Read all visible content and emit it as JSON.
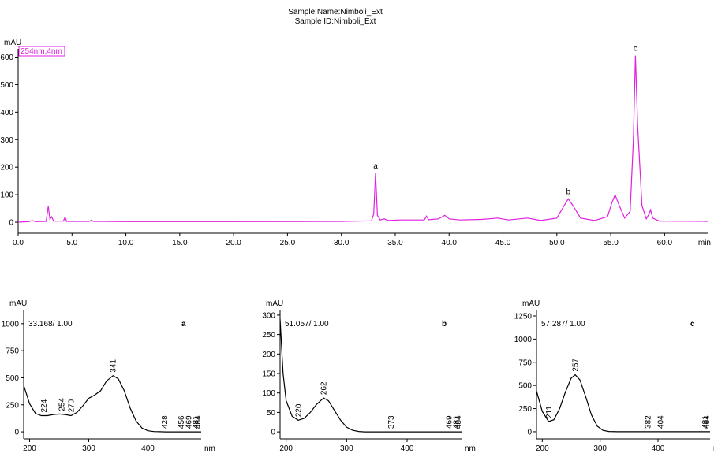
{
  "chart_data": [
    {
      "type": "line",
      "title": "Sample Name:Nimboli_Ext",
      "subtitle": "Sample ID:Nimboli_Ext",
      "y_label": "mAU",
      "x_label": "min",
      "legend": "254nm,4nm",
      "color": "#e020e0",
      "x": [
        0,
        1,
        1.3,
        1.6,
        2.6,
        2.8,
        2.95,
        3.1,
        3.3,
        4.2,
        4.35,
        4.5,
        6.6,
        6.8,
        7,
        10,
        20,
        30,
        32.8,
        33.0,
        33.17,
        33.35,
        33.6,
        34,
        34.3,
        35.5,
        37.7,
        37.9,
        38.1,
        39,
        39.6,
        40,
        41,
        43,
        44.5,
        45.5,
        46.5,
        47.3,
        48.5,
        50,
        50.6,
        51.06,
        51.5,
        52.2,
        53.5,
        54.7,
        55.1,
        55.4,
        55.8,
        56.3,
        56.8,
        57.1,
        57.29,
        57.5,
        57.9,
        58.3,
        58.55,
        58.7,
        58.9,
        59.5,
        64
      ],
      "values": [
        0,
        2,
        6,
        2,
        3,
        58,
        10,
        20,
        4,
        4,
        18,
        3,
        3,
        7,
        3,
        2,
        2,
        3,
        5,
        30,
        178,
        25,
        8,
        12,
        6,
        8,
        8,
        22,
        9,
        12,
        25,
        12,
        8,
        10,
        15,
        8,
        12,
        15,
        6,
        15,
        55,
        85,
        60,
        15,
        6,
        20,
        70,
        100,
        60,
        15,
        40,
        300,
        605,
        350,
        60,
        12,
        30,
        45,
        15,
        4,
        3
      ],
      "xlim": [
        0,
        64
      ],
      "ylim": [
        -40,
        630
      ],
      "xticks": [
        {
          "value": 0,
          "label": "0.0"
        },
        {
          "value": 5,
          "label": "5.0"
        },
        {
          "value": 10,
          "label": "10.0"
        },
        {
          "value": 15,
          "label": "15.0"
        },
        {
          "value": 20,
          "label": "20.0"
        },
        {
          "value": 25,
          "label": "25.0"
        },
        {
          "value": 30,
          "label": "30.0"
        },
        {
          "value": 35,
          "label": "35.0"
        },
        {
          "value": 40,
          "label": "40.0"
        },
        {
          "value": 45,
          "label": "45.0"
        },
        {
          "value": 50,
          "label": "50.0"
        },
        {
          "value": 55,
          "label": "55.0"
        },
        {
          "value": 60,
          "label": "60.0"
        }
      ],
      "yticks": [
        0,
        100,
        200,
        300,
        400,
        500,
        600
      ],
      "annotations": [
        {
          "text": "a",
          "x": 33.17,
          "y": 178
        },
        {
          "text": "b",
          "x": 51.06,
          "y": 85
        },
        {
          "text": "c",
          "x": 57.29,
          "y": 605
        }
      ]
    },
    {
      "type": "line",
      "y_label": "mAU",
      "x_label": "nm",
      "subtitle": "33.168/ 1.00",
      "panel_label": "a",
      "color": "#000000",
      "x": [
        190,
        200,
        210,
        220,
        230,
        240,
        250,
        260,
        270,
        280,
        290,
        300,
        310,
        320,
        330,
        341,
        350,
        360,
        370,
        380,
        390,
        400,
        410,
        420,
        430,
        490
      ],
      "values": [
        430,
        260,
        170,
        150,
        150,
        160,
        165,
        160,
        150,
        180,
        240,
        310,
        340,
        380,
        470,
        520,
        490,
        380,
        220,
        100,
        35,
        10,
        3,
        1,
        0,
        0
      ],
      "xlim": [
        190,
        490
      ],
      "ylim": [
        -65,
        1130
      ],
      "xticks": [
        200,
        300,
        400
      ],
      "yticks": [
        0,
        250,
        500,
        750,
        1000
      ],
      "peak_labels": [
        224,
        254,
        270,
        341,
        428,
        456,
        469,
        481,
        484
      ]
    },
    {
      "type": "line",
      "y_label": "mAU",
      "x_label": "nm",
      "subtitle": "51.057/ 1.00",
      "panel_label": "b",
      "color": "#000000",
      "x": [
        190,
        195,
        200,
        210,
        220,
        230,
        240,
        250,
        262,
        270,
        280,
        290,
        300,
        310,
        320,
        330,
        490
      ],
      "values": [
        290,
        150,
        80,
        40,
        30,
        35,
        50,
        70,
        87,
        80,
        55,
        30,
        12,
        4,
        1,
        0,
        0
      ],
      "xlim": [
        190,
        490
      ],
      "ylim": [
        -18,
        314
      ],
      "xticks": [
        200,
        300,
        400
      ],
      "yticks": [
        0,
        50,
        100,
        150,
        200,
        250,
        300
      ],
      "peak_labels": [
        220,
        262,
        373,
        469,
        481,
        484
      ]
    },
    {
      "type": "line",
      "y_label": "mAU",
      "x_label": "nm",
      "subtitle": "57.287/ 1.00",
      "panel_label": "c",
      "color": "#000000",
      "x": [
        190,
        200,
        211,
        220,
        230,
        240,
        250,
        257,
        265,
        275,
        285,
        295,
        305,
        315,
        330,
        490
      ],
      "values": [
        440,
        220,
        110,
        130,
        250,
        430,
        580,
        615,
        560,
        380,
        180,
        60,
        15,
        3,
        0,
        0
      ],
      "xlim": [
        190,
        490
      ],
      "ylim": [
        -77,
        1318
      ],
      "xticks": [
        200,
        300,
        400
      ],
      "yticks": [
        0,
        250,
        500,
        750,
        1000,
        1250
      ],
      "peak_labels": [
        211,
        257,
        382,
        404,
        481,
        484
      ]
    }
  ]
}
